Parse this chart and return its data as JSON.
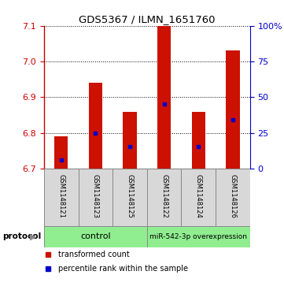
{
  "title": "GDS5367 / ILMN_1651760",
  "samples": [
    "GSM1148121",
    "GSM1148123",
    "GSM1148125",
    "GSM1148122",
    "GSM1148124",
    "GSM1148126"
  ],
  "bar_bottoms": [
    6.7,
    6.7,
    6.7,
    6.7,
    6.7,
    6.7
  ],
  "bar_tops": [
    6.79,
    6.94,
    6.86,
    7.1,
    6.86,
    7.03
  ],
  "blue_markers": [
    6.724,
    6.8,
    6.762,
    6.882,
    6.762,
    6.838
  ],
  "ylim": [
    6.7,
    7.1
  ],
  "yticks_left": [
    6.7,
    6.8,
    6.9,
    7.0,
    7.1
  ],
  "yticks_right": [
    0,
    25,
    50,
    75,
    100
  ],
  "ylabel_left_color": "#cc0000",
  "ylabel_right_color": "#0000cc",
  "bar_color": "#cc1100",
  "blue_marker_color": "#0000cc",
  "control_samples": [
    0,
    1,
    2
  ],
  "mir_samples": [
    3,
    4,
    5
  ],
  "legend_red": "transformed count",
  "legend_blue": "percentile rank within the sample",
  "sample_bg_color": "#d8d8d8",
  "group_color": "#90ee90",
  "bar_width": 0.4
}
